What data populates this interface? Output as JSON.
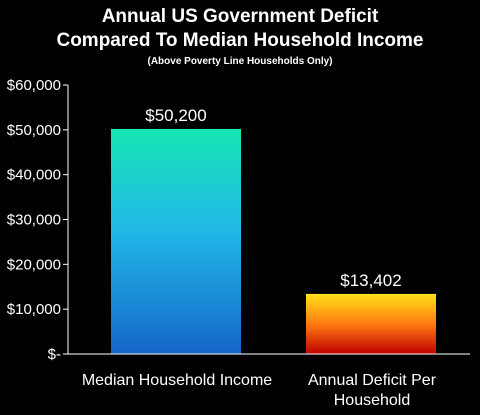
{
  "chart_data": {
    "type": "bar",
    "title": "Annual US Government Deficit",
    "title_line2": "Compared To Median Household Income",
    "subtitle": "(Above Poverty Line Households Only)",
    "categories": [
      "Median Household Income",
      "Annual Deficit Per Household"
    ],
    "category_lines": [
      [
        "Median Household Income"
      ],
      [
        "Annual Deficit Per",
        "Household"
      ]
    ],
    "values": [
      50200,
      13402
    ],
    "data_labels": [
      "$50,200",
      "$13,402"
    ],
    "ylim": [
      0,
      60000
    ],
    "y_ticks": [
      0,
      10000,
      20000,
      30000,
      40000,
      50000,
      60000
    ],
    "y_tick_labels": [
      "$-",
      "$10,000",
      "$20,000",
      "$30,000",
      "$40,000",
      "$50,000",
      "$60,000"
    ],
    "grid": false,
    "bar_colors": [
      {
        "top": "#16e6b4",
        "mid": "#22b8e8",
        "bottom": "#1566c8"
      },
      {
        "top": "#ffe21a",
        "mid": "#ff7a10",
        "bottom": "#c00000"
      }
    ]
  }
}
